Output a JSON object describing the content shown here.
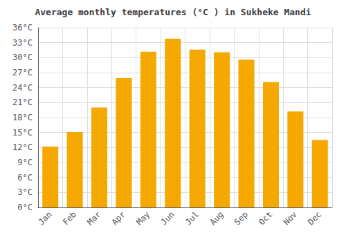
{
  "chart_data": {
    "type": "bar",
    "title": "Average monthly temperatures (°C ) in Sukheke Mandi",
    "categories": [
      "Jan",
      "Feb",
      "Mar",
      "Apr",
      "May",
      "Jun",
      "Jul",
      "Aug",
      "Sep",
      "Oct",
      "Nov",
      "Dec"
    ],
    "values": [
      12.2,
      15.1,
      20.0,
      25.9,
      31.2,
      33.8,
      31.6,
      31.1,
      29.6,
      25.1,
      19.2,
      13.5
    ],
    "color": "#F5A800",
    "ylim": [
      0,
      36
    ],
    "yticks": [
      {
        "value": 0,
        "label": "0°C"
      },
      {
        "value": 3,
        "label": "3°C"
      },
      {
        "value": 6,
        "label": "6°C"
      },
      {
        "value": 9,
        "label": "9°C"
      },
      {
        "value": 12,
        "label": "12°C"
      },
      {
        "value": 15,
        "label": "15°C"
      },
      {
        "value": 18,
        "label": "18°C"
      },
      {
        "value": 21,
        "label": "21°C"
      },
      {
        "value": 24,
        "label": "24°C"
      },
      {
        "value": 27,
        "label": "27°C"
      },
      {
        "value": 30,
        "label": "30°C"
      },
      {
        "value": 33,
        "label": "33°C"
      },
      {
        "value": 36,
        "label": "36°C"
      }
    ],
    "grid": true
  }
}
